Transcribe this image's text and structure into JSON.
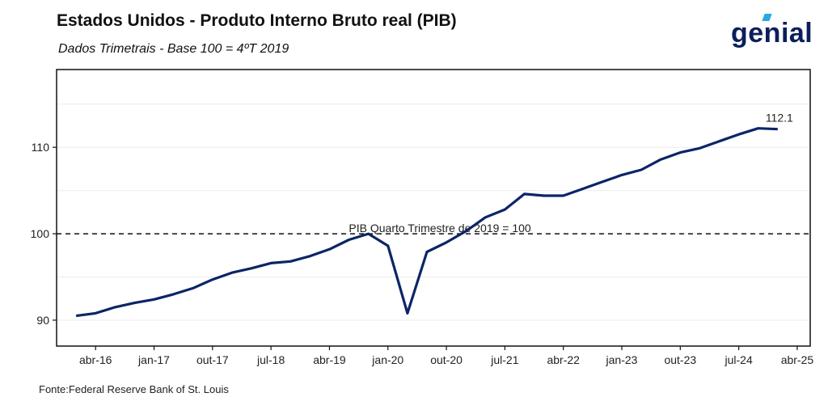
{
  "header": {
    "title": "Estados Unidos - Produto Interno Bruto real (PIB)",
    "subtitle": "Dados Trimetrais - Base 100 = 4ºT 2019",
    "logo_text": "genial"
  },
  "footer": {
    "source": "Fonte:Federal Reserve Bank of St. Louis"
  },
  "colors": {
    "line": "#0b2566",
    "reference": "#111111",
    "logo_accent": "#29a8e0"
  },
  "chart_data": {
    "type": "line",
    "title": "Estados Unidos - Produto Interno Bruto real (PIB)",
    "xlabel": "",
    "ylabel": "",
    "ylim": [
      87,
      119
    ],
    "xlim": [
      "2015-10",
      "2025-06"
    ],
    "grid": true,
    "y_ticks": [
      90,
      100,
      110
    ],
    "x_ticks": [
      {
        "date": "2016-04",
        "label": "abr-16"
      },
      {
        "date": "2017-01",
        "label": "jan-17"
      },
      {
        "date": "2017-10",
        "label": "out-17"
      },
      {
        "date": "2018-07",
        "label": "jul-18"
      },
      {
        "date": "2019-04",
        "label": "abr-19"
      },
      {
        "date": "2020-01",
        "label": "jan-20"
      },
      {
        "date": "2020-10",
        "label": "out-20"
      },
      {
        "date": "2021-07",
        "label": "jul-21"
      },
      {
        "date": "2022-04",
        "label": "abr-22"
      },
      {
        "date": "2023-01",
        "label": "jan-23"
      },
      {
        "date": "2023-10",
        "label": "out-23"
      },
      {
        "date": "2024-07",
        "label": "jul-24"
      },
      {
        "date": "2025-04",
        "label": "abr-25"
      }
    ],
    "reference_line": {
      "y": 100,
      "label": "PIB Quarto Trimestre de 2019 = 100"
    },
    "end_label": "112.1",
    "series": [
      {
        "x": [
          "2016-01",
          "2016-04",
          "2016-07",
          "2016-10",
          "2017-01",
          "2017-04",
          "2017-07",
          "2017-10",
          "2018-01",
          "2018-04",
          "2018-07",
          "2018-10",
          "2019-01",
          "2019-04",
          "2019-07",
          "2019-10",
          "2020-01",
          "2020-04",
          "2020-07",
          "2020-10",
          "2021-01",
          "2021-04",
          "2021-07",
          "2021-10",
          "2022-01",
          "2022-04",
          "2022-07",
          "2022-10",
          "2023-01",
          "2023-04",
          "2023-07",
          "2023-10",
          "2024-01",
          "2024-04",
          "2024-07",
          "2024-10",
          "2025-01"
        ],
        "values": [
          90.5,
          90.8,
          91.5,
          92.0,
          92.4,
          93.0,
          93.7,
          94.7,
          95.5,
          96.0,
          96.6,
          96.8,
          97.4,
          98.2,
          99.3,
          100.0,
          98.6,
          90.8,
          97.9,
          99.0,
          100.3,
          101.9,
          102.8,
          104.6,
          104.4,
          104.4,
          105.2,
          106.0,
          106.8,
          107.4,
          108.6,
          109.4,
          109.9,
          110.7,
          111.5,
          112.2,
          112.1
        ]
      }
    ]
  }
}
